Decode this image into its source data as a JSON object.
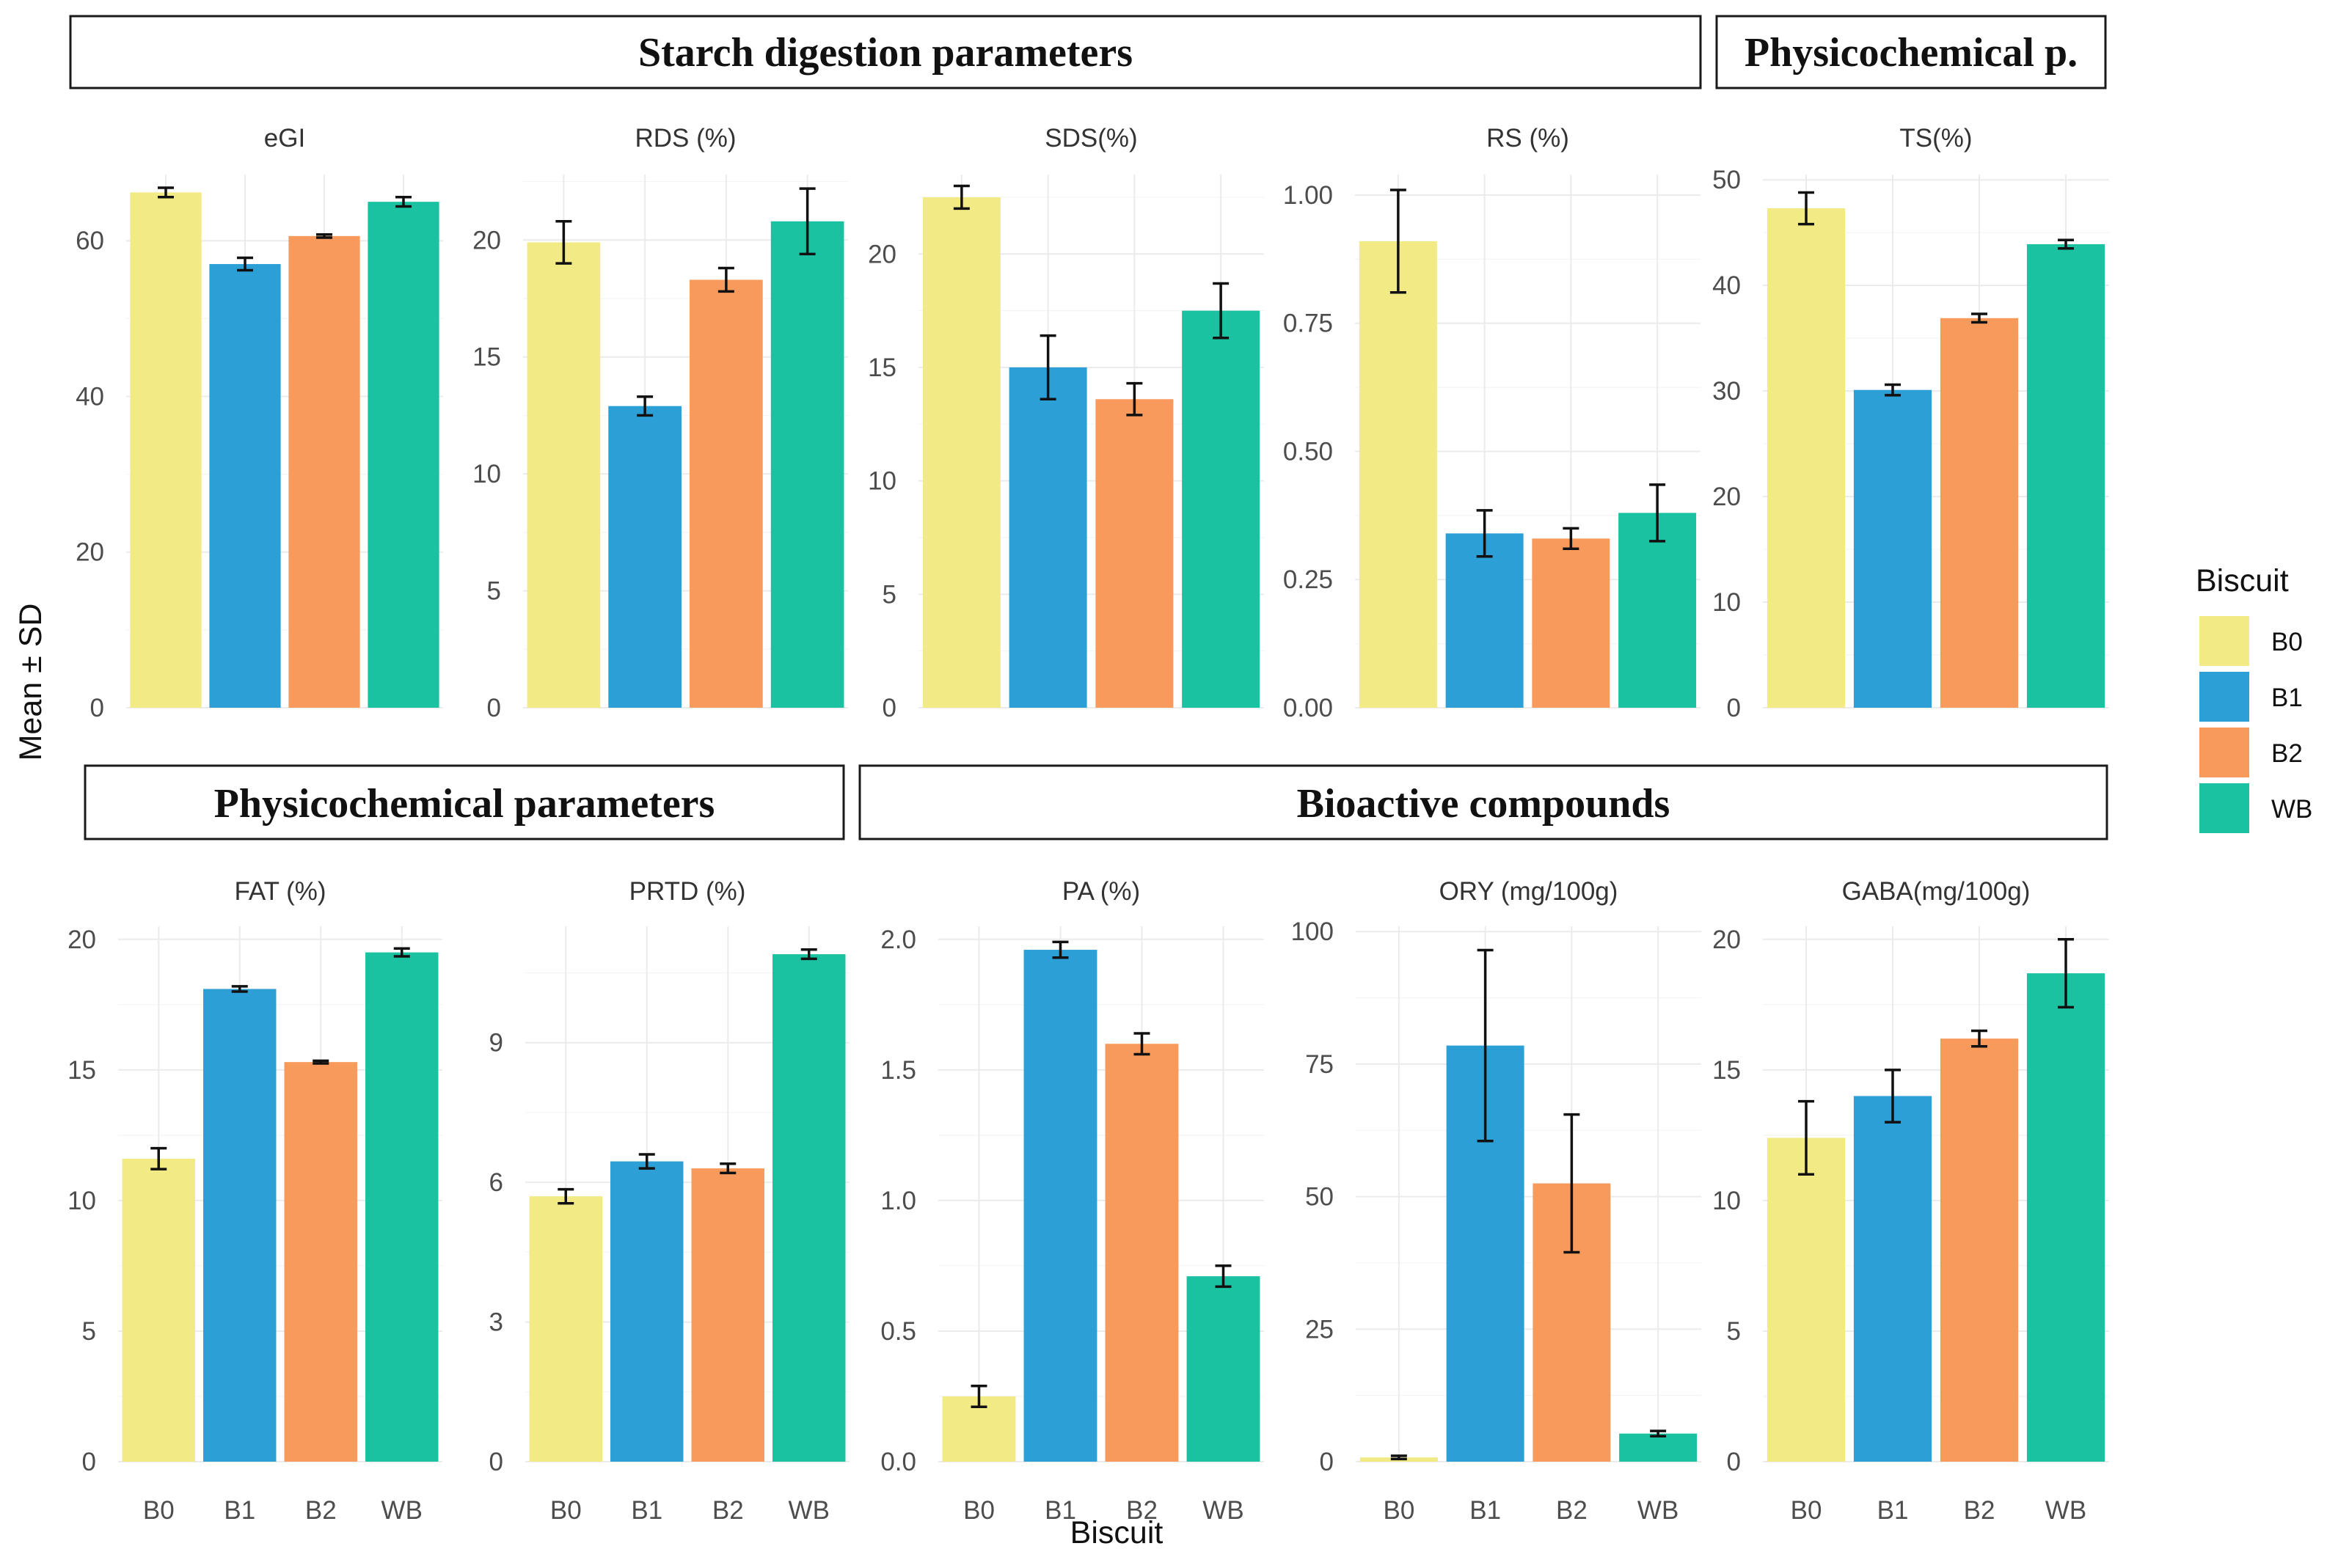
{
  "headers": {
    "starch": "Starch digestion parameters",
    "physico_top": "Physicochemical p.",
    "physico_bottom": "Physicochemical parameters",
    "bioactive": "Bioactive compounds"
  },
  "y_axis_label": "Mean ± SD",
  "x_axis_label": "Biscuit",
  "legend": {
    "title": "Biscuit",
    "items": [
      {
        "label": "B0",
        "color": "#F2EA84"
      },
      {
        "label": "B1",
        "color": "#2C9FD6"
      },
      {
        "label": "B2",
        "color": "#F79A5B"
      },
      {
        "label": "WB",
        "color": "#1BC2A2"
      }
    ]
  },
  "chart_data": [
    {
      "type": "bar",
      "title": "eGI",
      "categories": [
        "B0",
        "B1",
        "B2",
        "WB"
      ],
      "values": [
        66.2,
        57.0,
        60.6,
        65.0
      ],
      "errors": [
        0.6,
        0.8,
        0.2,
        0.6
      ],
      "ylim": [
        0,
        68.5
      ],
      "yticks": [
        0,
        20,
        40,
        60
      ],
      "yticklabels": [
        "0",
        "20",
        "40",
        "60"
      ]
    },
    {
      "type": "bar",
      "title": "RDS (%)",
      "categories": [
        "B0",
        "B1",
        "B2",
        "WB"
      ],
      "values": [
        19.9,
        12.9,
        18.3,
        20.8
      ],
      "errors": [
        0.9,
        0.4,
        0.5,
        1.4
      ],
      "ylim": [
        0,
        22.8
      ],
      "yticks": [
        0,
        5,
        10,
        15,
        20
      ],
      "yticklabels": [
        "0",
        "5",
        "10",
        "15",
        "20"
      ]
    },
    {
      "type": "bar",
      "title": "SDS(%)",
      "categories": [
        "B0",
        "B1",
        "B2",
        "WB"
      ],
      "values": [
        22.5,
        15.0,
        13.6,
        17.5
      ],
      "errors": [
        0.5,
        1.4,
        0.7,
        1.2
      ],
      "ylim": [
        0,
        23.5
      ],
      "yticks": [
        0,
        5,
        10,
        15,
        20
      ],
      "yticklabels": [
        "0",
        "5",
        "10",
        "15",
        "20"
      ]
    },
    {
      "type": "bar",
      "title": "RS (%)",
      "categories": [
        "B0",
        "B1",
        "B2",
        "WB"
      ],
      "values": [
        0.91,
        0.34,
        0.33,
        0.38
      ],
      "errors": [
        0.1,
        0.045,
        0.02,
        0.055
      ],
      "ylim": [
        0,
        1.04
      ],
      "yticks": [
        0,
        0.25,
        0.5,
        0.75,
        1.0
      ],
      "yticklabels": [
        "0.00",
        "0.25",
        "0.50",
        "0.75",
        "1.00"
      ]
    },
    {
      "type": "bar",
      "title": "TS(%)",
      "categories": [
        "B0",
        "B1",
        "B2",
        "WB"
      ],
      "values": [
        47.3,
        30.1,
        36.9,
        43.9
      ],
      "errors": [
        1.5,
        0.5,
        0.4,
        0.4
      ],
      "ylim": [
        0,
        50.5
      ],
      "yticks": [
        0,
        10,
        20,
        30,
        40,
        50
      ],
      "yticklabels": [
        "0",
        "10",
        "20",
        "30",
        "40",
        "50"
      ]
    },
    {
      "type": "bar",
      "title": "FAT (%)",
      "categories": [
        "B0",
        "B1",
        "B2",
        "WB"
      ],
      "values": [
        11.6,
        18.1,
        15.3,
        19.5
      ],
      "errors": [
        0.4,
        0.1,
        0.05,
        0.15
      ],
      "ylim": [
        0,
        20.5
      ],
      "yticks": [
        0,
        5,
        10,
        15,
        20
      ],
      "yticklabels": [
        "0",
        "5",
        "10",
        "15",
        "20"
      ]
    },
    {
      "type": "bar",
      "title": "PRTD (%)",
      "categories": [
        "B0",
        "B1",
        "B2",
        "WB"
      ],
      "values": [
        5.7,
        6.45,
        6.3,
        10.9
      ],
      "errors": [
        0.15,
        0.15,
        0.1,
        0.1
      ],
      "ylim": [
        0,
        11.5
      ],
      "yticks": [
        0,
        3,
        6,
        9
      ],
      "yticklabels": [
        "0",
        "3",
        "6",
        "9"
      ]
    },
    {
      "type": "bar",
      "title": "PA (%)",
      "categories": [
        "B0",
        "B1",
        "B2",
        "WB"
      ],
      "values": [
        0.25,
        1.96,
        1.6,
        0.71
      ],
      "errors": [
        0.04,
        0.03,
        0.04,
        0.04
      ],
      "ylim": [
        0,
        2.05
      ],
      "yticks": [
        0,
        0.5,
        1.0,
        1.5,
        2.0
      ],
      "yticklabels": [
        "0.0",
        "0.5",
        "1.0",
        "1.5",
        "2.0"
      ]
    },
    {
      "type": "bar",
      "title": "ORY (mg/100g)",
      "categories": [
        "B0",
        "B1",
        "B2",
        "WB"
      ],
      "values": [
        0.8,
        78.5,
        52.5,
        5.3
      ],
      "errors": [
        0.3,
        18.0,
        13.0,
        0.5
      ],
      "ylim": [
        0,
        101
      ],
      "yticks": [
        0,
        25,
        50,
        75,
        100
      ],
      "yticklabels": [
        "0",
        "25",
        "50",
        "75",
        "100"
      ]
    },
    {
      "type": "bar",
      "title": "GABA(mg/100g)",
      "categories": [
        "B0",
        "B1",
        "B2",
        "WB"
      ],
      "values": [
        12.4,
        14.0,
        16.2,
        18.7
      ],
      "errors": [
        1.4,
        1.0,
        0.3,
        1.3
      ],
      "ylim": [
        0,
        20.5
      ],
      "yticks": [
        0,
        5,
        10,
        15,
        20
      ],
      "yticklabels": [
        "0",
        "5",
        "10",
        "15",
        "20"
      ]
    }
  ]
}
